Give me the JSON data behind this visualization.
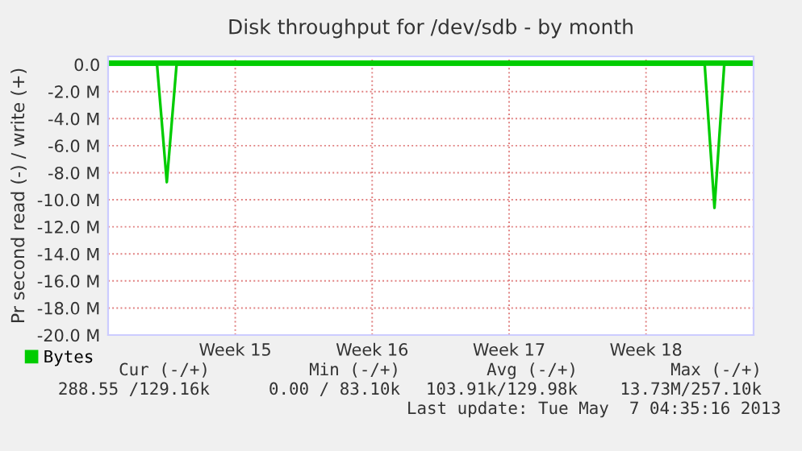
{
  "chart_data": {
    "type": "line",
    "title": "Disk throughput for /dev/sdb - by month",
    "ylabel": "Pr second read (-) / write (+)",
    "categories": [
      null,
      null,
      null,
      null,
      null,
      null,
      null,
      null,
      null,
      null,
      null,
      null,
      null,
      "Week 15",
      null,
      null,
      null,
      null,
      null,
      null,
      null,
      null,
      null,
      null,
      null,
      null,
      null,
      "Week 16",
      null,
      null,
      null,
      null,
      null,
      null,
      null,
      null,
      null,
      null,
      null,
      null,
      null,
      "Week 17",
      null,
      null,
      null,
      null,
      null,
      null,
      null,
      null,
      null,
      null,
      null,
      null,
      null,
      "Week 18",
      null,
      null,
      null,
      null,
      null,
      null,
      null,
      null,
      null,
      null,
      null
    ],
    "ylim": [
      -20,
      0.6
    ],
    "yticks": [
      {
        "value": 0,
        "label": "0.0"
      },
      {
        "value": -2,
        "label": "-2.0 M"
      },
      {
        "value": -4,
        "label": "-4.0 M"
      },
      {
        "value": -6,
        "label": "-6.0 M"
      },
      {
        "value": -8,
        "label": "-8.0 M"
      },
      {
        "value": -10,
        "label": "-10.0 M"
      },
      {
        "value": -12,
        "label": "-12.0 M"
      },
      {
        "value": -14,
        "label": "-14.0 M"
      },
      {
        "value": -16,
        "label": "-16.0 M"
      },
      {
        "value": -18,
        "label": "-18.0 M"
      },
      {
        "value": -20,
        "label": "-20.0 M"
      }
    ],
    "grid": true,
    "legend": "bottom left",
    "series": [
      {
        "name": "Bytes",
        "color": "#00cc00",
        "values": [
          0,
          0,
          0,
          0,
          0,
          0,
          -8.7,
          0,
          0,
          0,
          0,
          0,
          0,
          0,
          0,
          0,
          0,
          0,
          0,
          0,
          0,
          0,
          0,
          0,
          0,
          0,
          0,
          0,
          0,
          0,
          0,
          0,
          0,
          0,
          0,
          0,
          0,
          0,
          0,
          0,
          0,
          0,
          0,
          0,
          0,
          0,
          0,
          0,
          0,
          0,
          0,
          0,
          0,
          0,
          0,
          0,
          0,
          0,
          0,
          0,
          0,
          0,
          -10.6,
          0,
          0,
          0,
          0
        ]
      },
      {
        "color": "#00cc00",
        "values": [
          0.1,
          0.1,
          0.1,
          0.1,
          0.1,
          0.1,
          0.1,
          0.1,
          0.1,
          0.1,
          0.1,
          0.1,
          0.1,
          0.1,
          0.1,
          0.1,
          0.1,
          0.1,
          0.1,
          0.1,
          0.1,
          0.1,
          0.1,
          0.1,
          0.1,
          0.1,
          0.1,
          0.1,
          0.1,
          0.1,
          0.1,
          0.1,
          0.1,
          0.1,
          0.1,
          0.1,
          0.1,
          0.1,
          0.1,
          0.1,
          0.1,
          0.1,
          0.1,
          0.1,
          0.1,
          0.1,
          0.1,
          0.1,
          0.1,
          0.1,
          0.1,
          0.1,
          0.1,
          0.1,
          0.1,
          0.1,
          0.1,
          0.1,
          0.1,
          0.1,
          0.1,
          0.1,
          0.1,
          0.1,
          0.1,
          0.1,
          0.1
        ]
      }
    ],
    "annotations": [
      "Cur (-/+)",
      "Min (-/+)",
      "Avg (-/+)",
      "Max (-/+)",
      "288.55 /129.16k",
      "0.00 / 83.10k",
      "103.91k/129.98k",
      "13.73M/257.10k",
      "Last update: Tue May  7 04:35:16 2013"
    ]
  }
}
